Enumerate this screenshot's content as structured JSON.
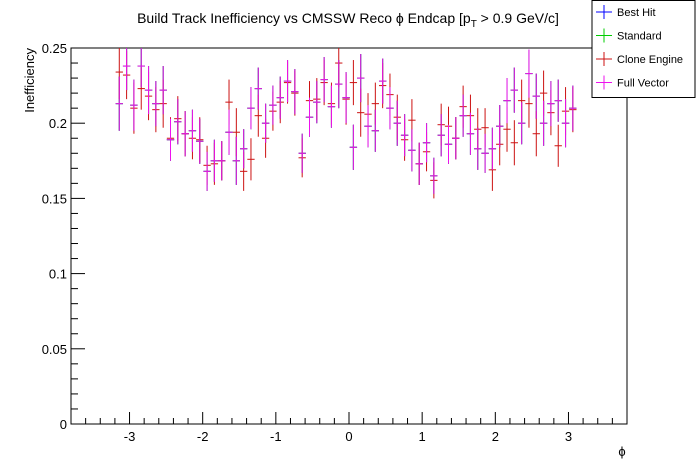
{
  "chart_data": {
    "type": "scatter",
    "title_main": "Build Track Inefficiency vs CMSSW Reco ϕ Endcap [p",
    "title_sub": "T",
    "title_tail": " > 0.9 GeV/c]",
    "xlabel": "ϕ",
    "ylabel": "Inefficiency",
    "xlim": [
      -3.8,
      3.8
    ],
    "ylim": [
      0,
      0.25
    ],
    "xticks": [
      -3,
      -2,
      -1,
      0,
      1,
      2,
      3
    ],
    "xtick_labels": [
      "-3",
      "-2",
      "-1",
      "0",
      "1",
      "2",
      "3"
    ],
    "yticks": [
      0,
      0.05,
      0.1,
      0.15,
      0.2,
      0.25
    ],
    "ytick_labels": [
      "0",
      "0.05",
      "0.1",
      "0.15",
      "0.2",
      "0.25"
    ],
    "grid": false,
    "legend_position": "top-right",
    "bin_halfwidth": 0.05,
    "series": [
      {
        "name": "Best Hit",
        "color": "#0000ff",
        "x": [
          -3.14,
          -3.04,
          -2.94,
          -2.84,
          -2.74,
          -2.64,
          -2.54,
          -2.44,
          -2.34,
          -2.24,
          -2.14,
          -2.04,
          -1.94,
          -1.84,
          -1.74,
          -1.64,
          -1.54,
          -1.44,
          -1.34,
          -1.24,
          -1.14,
          -1.04,
          -0.94,
          -0.84,
          -0.74,
          -0.64,
          -0.54,
          -0.44,
          -0.34,
          -0.24,
          -0.14,
          -0.04,
          0.06,
          0.16,
          0.26,
          0.36,
          0.46,
          0.56,
          0.66,
          0.76,
          0.86,
          0.96,
          1.06,
          1.16,
          1.26,
          1.36,
          1.46,
          1.56,
          1.66,
          1.76,
          1.86,
          1.96,
          2.06,
          2.16,
          2.26,
          2.36,
          2.46,
          2.56,
          2.66,
          2.76,
          2.86,
          2.96,
          3.06
        ],
        "y": [
          0.213,
          0.238,
          0.212,
          0.238,
          0.222,
          0.213,
          0.222,
          0.189,
          0.201,
          0.193,
          0.195,
          0.188,
          0.168,
          0.175,
          0.175,
          0.194,
          0.175,
          0.183,
          0.21,
          0.223,
          0.2,
          0.212,
          0.217,
          0.228,
          0.221,
          0.18,
          0.204,
          0.214,
          0.229,
          0.211,
          0.226,
          0.217,
          0.184,
          0.23,
          0.198,
          0.195,
          0.228,
          0.21,
          0.2,
          0.192,
          0.182,
          0.173,
          0.187,
          0.165,
          0.192,
          0.186,
          0.19,
          0.205,
          0.193,
          0.183,
          0.18,
          0.183,
          0.198,
          0.215,
          0.222,
          0.2,
          0.233,
          0.218,
          0.2,
          0.213,
          0.215,
          0.2,
          0.21
        ]
      },
      {
        "name": "Standard",
        "color": "#00cc00",
        "x": [
          -3.14,
          -3.04,
          -2.94,
          -2.84,
          -2.74,
          -2.64,
          -2.54,
          -2.44,
          -2.34,
          -2.24,
          -2.14,
          -2.04,
          -1.94,
          -1.84,
          -1.74,
          -1.64,
          -1.54,
          -1.44,
          -1.34,
          -1.24,
          -1.14,
          -1.04,
          -0.94,
          -0.84,
          -0.74,
          -0.64,
          -0.54,
          -0.44,
          -0.34,
          -0.24,
          -0.14,
          -0.04,
          0.06,
          0.16,
          0.26,
          0.36,
          0.46,
          0.56,
          0.66,
          0.76,
          0.86,
          0.96,
          1.06,
          1.16,
          1.26,
          1.36,
          1.46,
          1.56,
          1.66,
          1.76,
          1.86,
          1.96,
          2.06,
          2.16,
          2.26,
          2.36,
          2.46,
          2.56,
          2.66,
          2.76,
          2.86,
          2.96,
          3.06
        ],
        "y": [
          0.213,
          0.238,
          0.212,
          0.238,
          0.222,
          0.213,
          0.222,
          0.189,
          0.201,
          0.193,
          0.195,
          0.188,
          0.168,
          0.175,
          0.175,
          0.194,
          0.175,
          0.183,
          0.21,
          0.223,
          0.2,
          0.212,
          0.217,
          0.228,
          0.221,
          0.18,
          0.204,
          0.214,
          0.229,
          0.211,
          0.226,
          0.217,
          0.184,
          0.23,
          0.198,
          0.195,
          0.228,
          0.21,
          0.2,
          0.192,
          0.182,
          0.173,
          0.187,
          0.165,
          0.192,
          0.186,
          0.19,
          0.205,
          0.193,
          0.183,
          0.18,
          0.183,
          0.198,
          0.215,
          0.222,
          0.2,
          0.233,
          0.218,
          0.2,
          0.213,
          0.215,
          0.2,
          0.21
        ]
      },
      {
        "name": "Clone Engine",
        "color": "#cc1111",
        "x": [
          -3.14,
          -3.04,
          -2.94,
          -2.84,
          -2.74,
          -2.64,
          -2.54,
          -2.44,
          -2.34,
          -2.24,
          -2.14,
          -2.04,
          -1.94,
          -1.84,
          -1.74,
          -1.64,
          -1.54,
          -1.44,
          -1.34,
          -1.24,
          -1.14,
          -1.04,
          -0.94,
          -0.84,
          -0.74,
          -0.64,
          -0.54,
          -0.44,
          -0.34,
          -0.24,
          -0.14,
          -0.04,
          0.06,
          0.16,
          0.26,
          0.36,
          0.46,
          0.56,
          0.66,
          0.76,
          0.86,
          0.96,
          1.06,
          1.16,
          1.26,
          1.36,
          1.46,
          1.56,
          1.66,
          1.76,
          1.86,
          1.96,
          2.06,
          2.16,
          2.26,
          2.36,
          2.46,
          2.56,
          2.66,
          2.76,
          2.86,
          2.96,
          3.06
        ],
        "y": [
          0.234,
          0.232,
          0.21,
          0.223,
          0.218,
          0.209,
          0.213,
          0.19,
          0.203,
          0.193,
          0.19,
          0.189,
          0.172,
          0.173,
          0.175,
          0.214,
          0.194,
          0.168,
          0.176,
          0.205,
          0.19,
          0.208,
          0.214,
          0.227,
          0.22,
          0.177,
          0.215,
          0.216,
          0.227,
          0.213,
          0.24,
          0.216,
          0.227,
          0.207,
          0.206,
          0.213,
          0.225,
          0.219,
          0.204,
          0.189,
          0.202,
          0.173,
          0.181,
          0.162,
          0.199,
          0.198,
          0.19,
          0.211,
          0.205,
          0.196,
          0.197,
          0.169,
          0.186,
          0.196,
          0.187,
          0.215,
          0.213,
          0.193,
          0.22,
          0.207,
          0.185,
          0.208,
          0.209
        ]
      },
      {
        "name": "Full Vector",
        "color": "#ee11ee",
        "x": [
          -3.14,
          -3.04,
          -2.94,
          -2.84,
          -2.74,
          -2.64,
          -2.54,
          -2.44,
          -2.34,
          -2.24,
          -2.14,
          -2.04,
          -1.94,
          -1.84,
          -1.74,
          -1.64,
          -1.54,
          -1.44,
          -1.34,
          -1.24,
          -1.14,
          -1.04,
          -0.94,
          -0.84,
          -0.74,
          -0.64,
          -0.54,
          -0.44,
          -0.34,
          -0.24,
          -0.14,
          -0.04,
          0.06,
          0.16,
          0.26,
          0.36,
          0.46,
          0.56,
          0.66,
          0.76,
          0.86,
          0.96,
          1.06,
          1.16,
          1.26,
          1.36,
          1.46,
          1.56,
          1.66,
          1.76,
          1.86,
          1.96,
          2.06,
          2.16,
          2.26,
          2.36,
          2.46,
          2.56,
          2.66,
          2.76,
          2.86,
          2.96,
          3.06
        ],
        "y": [
          0.213,
          0.238,
          0.212,
          0.238,
          0.222,
          0.213,
          0.222,
          0.189,
          0.201,
          0.193,
          0.195,
          0.188,
          0.168,
          0.175,
          0.175,
          0.194,
          0.175,
          0.183,
          0.21,
          0.223,
          0.2,
          0.212,
          0.217,
          0.228,
          0.221,
          0.18,
          0.204,
          0.214,
          0.229,
          0.211,
          0.226,
          0.217,
          0.184,
          0.23,
          0.198,
          0.195,
          0.228,
          0.21,
          0.2,
          0.192,
          0.182,
          0.173,
          0.187,
          0.165,
          0.192,
          0.186,
          0.19,
          0.205,
          0.193,
          0.183,
          0.18,
          0.183,
          0.198,
          0.215,
          0.222,
          0.2,
          0.233,
          0.218,
          0.2,
          0.213,
          0.215,
          0.2,
          0.21
        ],
        "err": [
          0.018,
          0.016,
          0.017,
          0.014,
          0.016,
          0.015,
          0.016,
          0.014,
          0.015,
          0.015,
          0.014,
          0.015,
          0.013,
          0.014,
          0.013,
          0.015,
          0.016,
          0.013,
          0.014,
          0.014,
          0.013,
          0.013,
          0.014,
          0.014,
          0.015,
          0.013,
          0.013,
          0.014,
          0.015,
          0.014,
          0.016,
          0.017,
          0.015,
          0.016,
          0.014,
          0.014,
          0.015,
          0.014,
          0.015,
          0.014,
          0.014,
          0.014,
          0.013,
          0.012,
          0.014,
          0.013,
          0.014,
          0.014,
          0.014,
          0.014,
          0.013,
          0.014,
          0.014,
          0.015,
          0.015,
          0.014,
          0.016,
          0.015,
          0.015,
          0.015,
          0.014,
          0.016,
          0.015
        ]
      }
    ]
  }
}
